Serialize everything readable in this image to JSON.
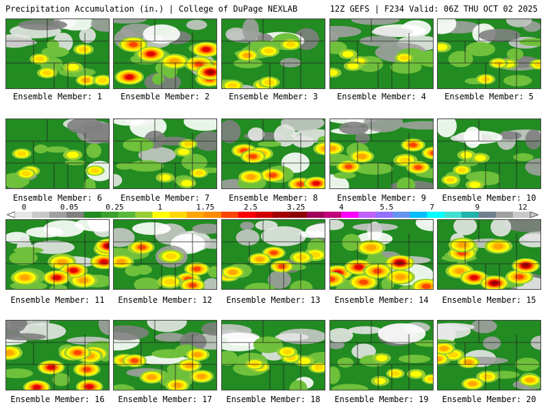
{
  "header": {
    "title": "Precipitation Accumulation (in.) | College of DuPage NEXLAB",
    "run_info": "12Z GEFS | F234 Valid: 06Z THU OCT 02 2025"
  },
  "colorbar": {
    "tick_labels": [
      "0",
      "0.05",
      "0.25",
      "1",
      "1.75",
      "2.5",
      "3.25",
      "4",
      "5.5",
      "7",
      "9",
      "12"
    ],
    "colors": [
      "#e6e6e6",
      "#c8c8c8",
      "#a0a0a0",
      "#808080",
      "#228b22",
      "#3aa12f",
      "#58b83a",
      "#9acd32",
      "#ffff00",
      "#ffd700",
      "#ffa500",
      "#ff8c00",
      "#ff4500",
      "#ff0000",
      "#d00000",
      "#a00000",
      "#8b0000",
      "#a0005a",
      "#c0007a",
      "#ff00ff",
      "#c060ff",
      "#9370ff",
      "#6495ed",
      "#00bfff",
      "#00ffff",
      "#40e0d0",
      "#20b2aa",
      "#708090",
      "#a0a0a0",
      "#c8c8c8"
    ]
  },
  "members": [
    {
      "label": "Ensemble Member: 1",
      "intensity": 0.35
    },
    {
      "label": "Ensemble Member: 2",
      "intensity": 0.8
    },
    {
      "label": "Ensemble Member: 3",
      "intensity": 0.4
    },
    {
      "label": "Ensemble Member: 4",
      "intensity": 0.25
    },
    {
      "label": "Ensemble Member: 5",
      "intensity": 0.3
    },
    {
      "label": "Ensemble Member: 6",
      "intensity": 0.3
    },
    {
      "label": "Ensemble Member: 7",
      "intensity": 0.25
    },
    {
      "label": "Ensemble Member: 8",
      "intensity": 0.6
    },
    {
      "label": "Ensemble Member: 9",
      "intensity": 0.55
    },
    {
      "label": "Ensemble Member: 10",
      "intensity": 0.25
    },
    {
      "label": "Ensemble Member: 11",
      "intensity": 0.75
    },
    {
      "label": "Ensemble Member: 12",
      "intensity": 0.6
    },
    {
      "label": "Ensemble Member: 13",
      "intensity": 0.5
    },
    {
      "label": "Ensemble Member: 14",
      "intensity": 0.8
    },
    {
      "label": "Ensemble Member: 15",
      "intensity": 0.75
    },
    {
      "label": "Ensemble Member: 16",
      "intensity": 0.7
    },
    {
      "label": "Ensemble Member: 17",
      "intensity": 0.55
    },
    {
      "label": "Ensemble Member: 18",
      "intensity": 0.35
    },
    {
      "label": "Ensemble Member: 19",
      "intensity": 0.25
    },
    {
      "label": "Ensemble Member: 20",
      "intensity": 0.45
    }
  ]
}
